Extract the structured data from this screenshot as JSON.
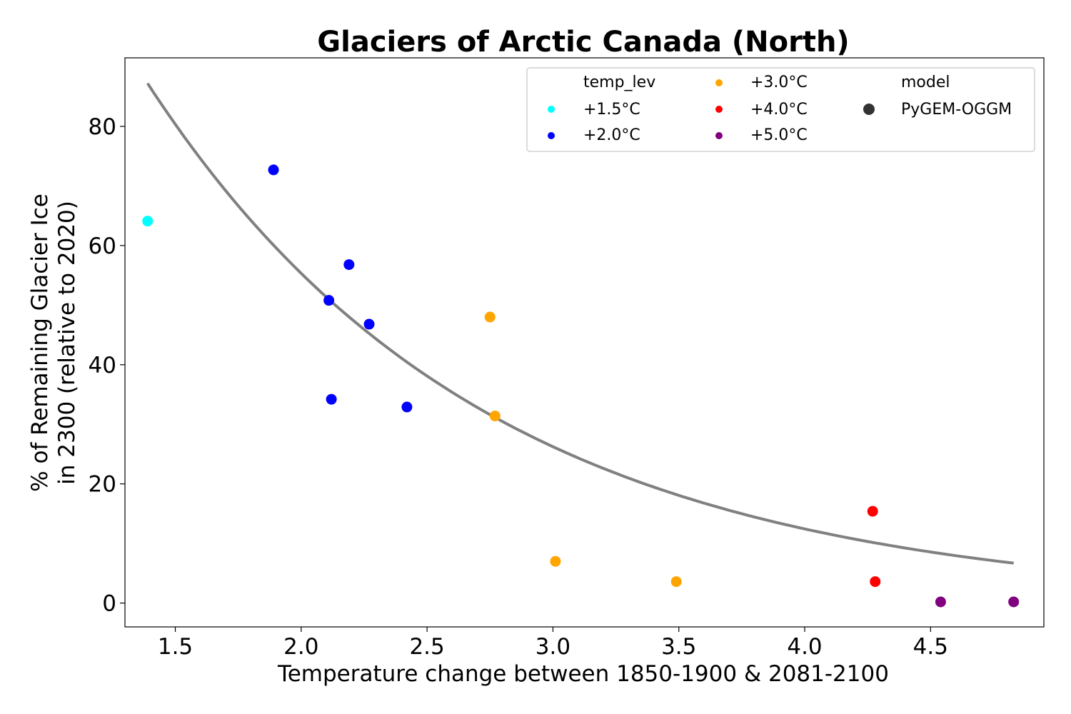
{
  "chart_data": {
    "type": "scatter",
    "title": "Glaciers of Arctic Canada (North)",
    "xlabel": "Temperature change between 1850-1900 & 2081-2100",
    "ylabel": [
      "% of Remaining Glacier Ice",
      "in 2300 (relative to 2020)"
    ],
    "xlim": [
      1.3,
      4.95
    ],
    "ylim": [
      -4.0,
      91.5
    ],
    "xticks": [
      1.5,
      2.0,
      2.5,
      3.0,
      3.5,
      4.0,
      4.5
    ],
    "xtick_labels": [
      "1.5",
      "2.0",
      "2.5",
      "3.0",
      "3.5",
      "4.0",
      "4.5"
    ],
    "yticks": [
      0,
      20,
      40,
      60,
      80
    ],
    "ytick_labels": [
      "0",
      "20",
      "40",
      "60",
      "80"
    ],
    "grid": false,
    "legend_placement": "top-right",
    "legend": {
      "hue_title": "temp_lev",
      "hue_entries": [
        {
          "label": "+1.5°C",
          "color": "#00ffff"
        },
        {
          "label": "+2.0°C",
          "color": "#0000ff"
        },
        {
          "label": "+3.0°C",
          "color": "#ffa500"
        },
        {
          "label": "+4.0°C",
          "color": "#ff0000"
        },
        {
          "label": "+5.0°C",
          "color": "#800080"
        }
      ],
      "style_title": "model",
      "style_entries": [
        {
          "label": "PyGEM-OGGM",
          "color": "#333333"
        }
      ]
    },
    "series": [
      {
        "name": "+1.5°C",
        "color": "#00ffff",
        "points": [
          [
            1.39,
            64.1
          ]
        ]
      },
      {
        "name": "+2.0°C",
        "color": "#0000ff",
        "points": [
          [
            1.89,
            72.7
          ],
          [
            2.19,
            56.8
          ],
          [
            2.11,
            50.8
          ],
          [
            2.27,
            46.8
          ],
          [
            2.12,
            34.2
          ],
          [
            2.42,
            32.9
          ]
        ]
      },
      {
        "name": "+3.0°C",
        "color": "#ffa500",
        "points": [
          [
            2.75,
            48.0
          ],
          [
            2.77,
            31.4
          ],
          [
            3.01,
            7.0
          ],
          [
            3.49,
            3.6
          ]
        ]
      },
      {
        "name": "+4.0°C",
        "color": "#ff0000",
        "points": [
          [
            4.27,
            15.4
          ],
          [
            4.28,
            3.6
          ]
        ]
      },
      {
        "name": "+5.0°C",
        "color": "#800080",
        "points": [
          [
            4.54,
            0.2
          ],
          [
            4.83,
            0.2
          ]
        ]
      }
    ],
    "fit_curve": {
      "type": "exponential",
      "formula": "y = a * exp(-b * x)",
      "a": 246,
      "b": 0.746,
      "x_range": [
        1.39,
        4.83
      ],
      "color": "#808080"
    }
  }
}
